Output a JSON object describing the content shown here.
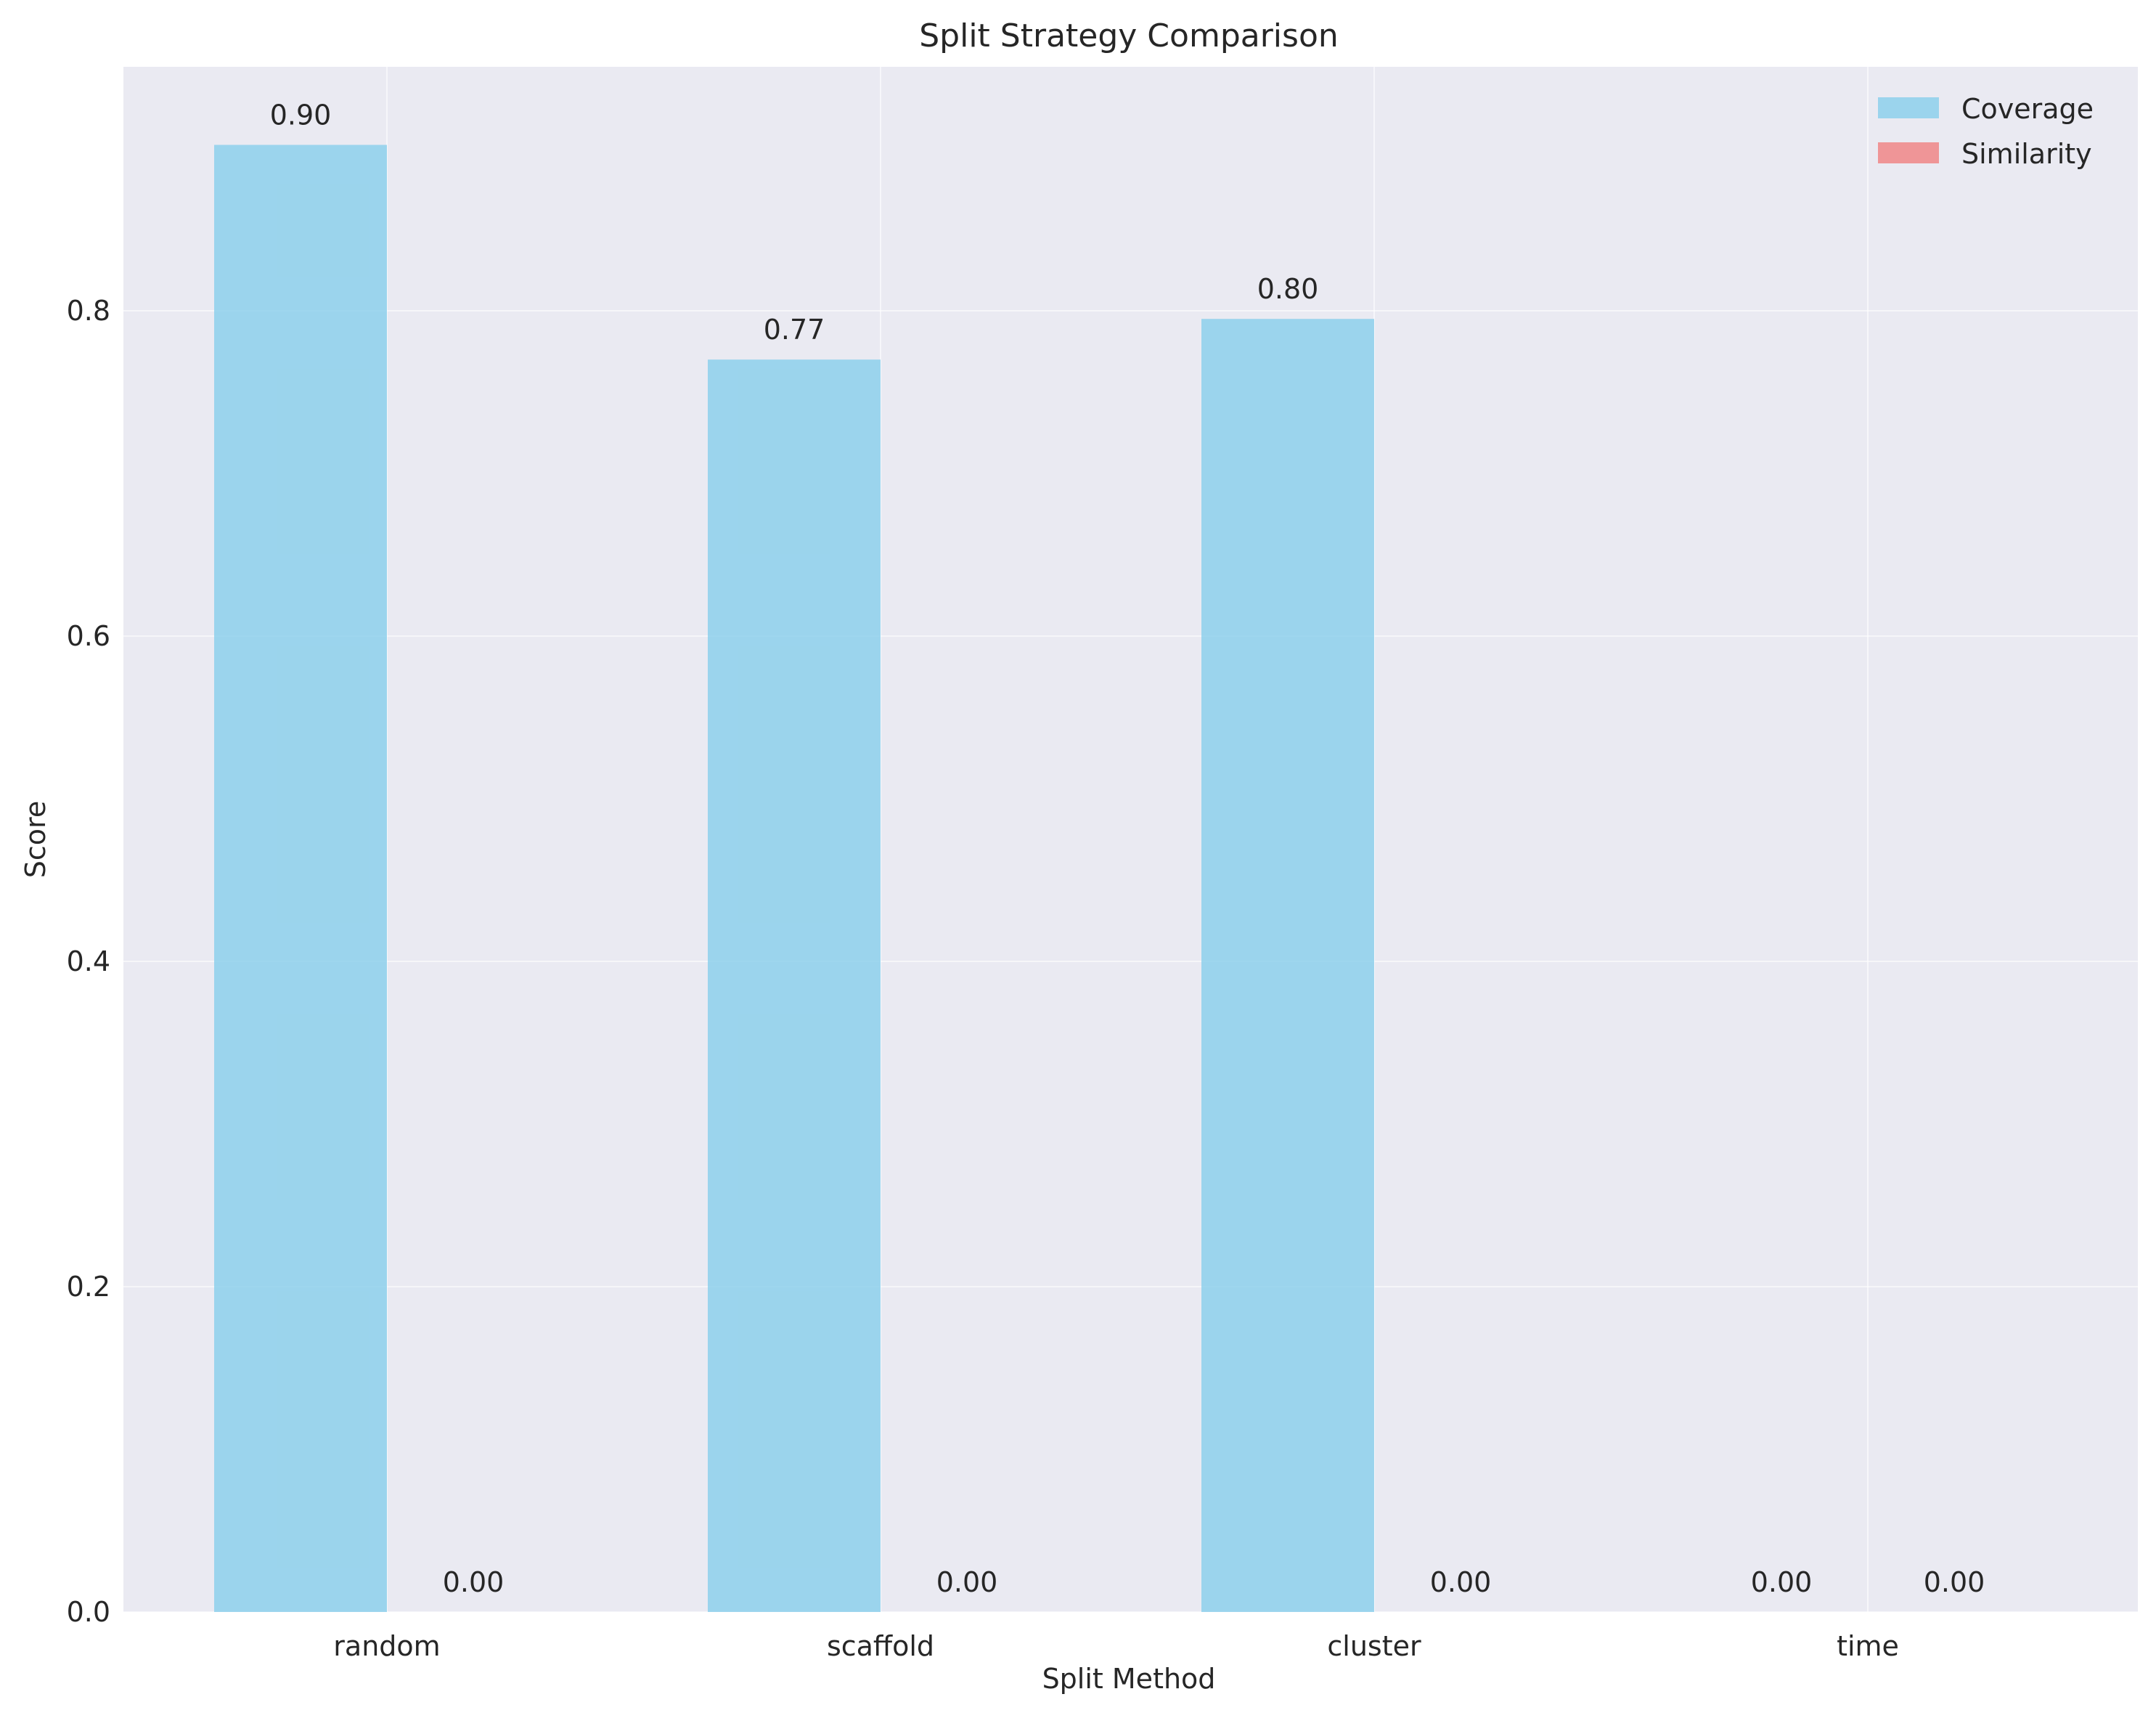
{
  "chart_data": {
    "type": "bar",
    "title": "Split Strategy Comparison",
    "xlabel": "Split Method",
    "ylabel": "Score",
    "categories": [
      "random",
      "scaffold",
      "cluster",
      "time"
    ],
    "series": [
      {
        "name": "Coverage",
        "values": [
          0.902,
          0.77,
          0.795,
          0.0
        ],
        "labels": [
          "0.90",
          "0.77",
          "0.80",
          "0.00"
        ],
        "color": "#87ceeb"
      },
      {
        "name": "Similarity",
        "values": [
          0.0,
          0.0,
          0.0,
          0.0
        ],
        "labels": [
          "0.00",
          "0.00",
          "0.00",
          "0.00"
        ],
        "color": "#f08080"
      }
    ],
    "ylim": [
      0,
      0.95
    ],
    "yticks": [
      0.0,
      0.2,
      0.4,
      0.6,
      0.8
    ],
    "ytick_labels": [
      "0.0",
      "0.2",
      "0.4",
      "0.6",
      "0.8"
    ],
    "grid": true,
    "legend_position": "top-right",
    "background_color": "#eaeaf2"
  }
}
